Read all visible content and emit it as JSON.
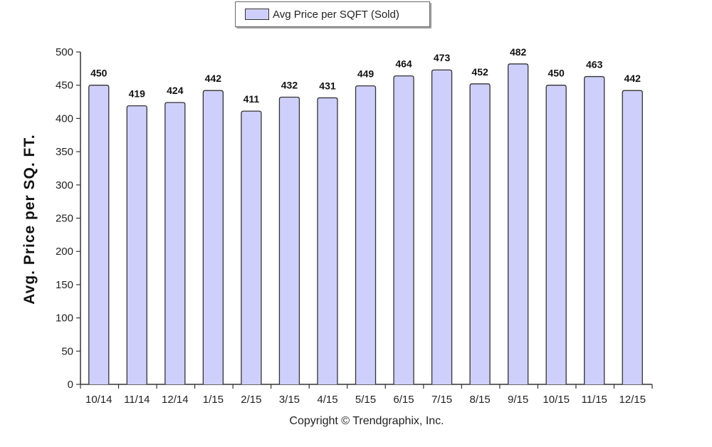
{
  "legend": {
    "label": "Avg Price per SQFT (Sold)"
  },
  "footer": "Copyright © Trendgraphix, Inc.",
  "colors": {
    "bar_fill": "#cfcffb",
    "bar_stroke": "#333333",
    "axis": "#333333"
  },
  "chart_data": {
    "type": "bar",
    "title": "",
    "xlabel": "",
    "ylabel": "Avg. Price per SQ. FT.",
    "categories": [
      "10/14",
      "11/14",
      "12/14",
      "1/15",
      "2/15",
      "3/15",
      "4/15",
      "5/15",
      "6/15",
      "7/15",
      "8/15",
      "9/15",
      "10/15",
      "11/15",
      "12/15"
    ],
    "series": [
      {
        "name": "Avg Price per SQFT (Sold)",
        "values": [
          450,
          419,
          424,
          442,
          411,
          432,
          431,
          449,
          464,
          473,
          452,
          482,
          450,
          463,
          442
        ]
      }
    ],
    "ylim": [
      0,
      500
    ],
    "yticks": [
      0,
      50,
      100,
      150,
      200,
      250,
      300,
      350,
      400,
      450,
      500
    ],
    "grid": false,
    "legend_position": "top-center",
    "data_labels": true
  }
}
